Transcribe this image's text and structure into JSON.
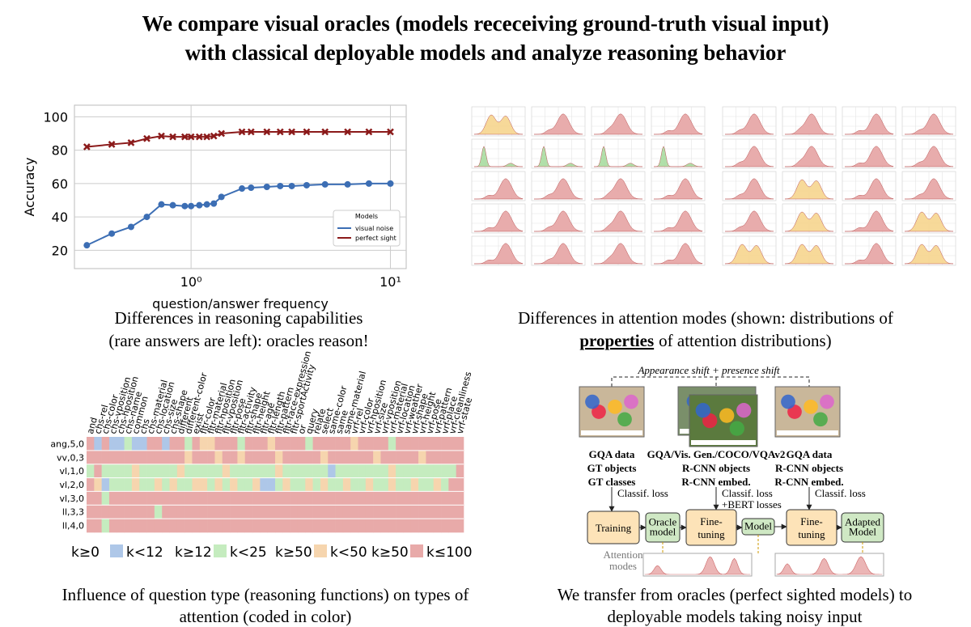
{
  "title": [
    "We compare visual oracles (models receceiving ground-truth visual input)",
    "with classical deployable models and analyze reasoning behavior"
  ],
  "chart_data": {
    "type": "line",
    "xlabel": "question/answer frequency",
    "ylabel": "Accuracy",
    "xscale": "log",
    "x": [
      0.3,
      0.4,
      0.5,
      0.6,
      0.71,
      0.81,
      0.93,
      1.0,
      1.1,
      1.2,
      1.3,
      1.42,
      1.8,
      2.0,
      2.4,
      2.8,
      3.2,
      3.8,
      4.7,
      6.1,
      7.8,
      10
    ],
    "series": [
      {
        "name": "visual noise",
        "color": "#3c6eb4",
        "marker": "circle",
        "values": [
          23,
          30,
          34,
          40,
          47.5,
          47,
          46.5,
          46.5,
          47,
          47.5,
          48,
          52,
          57,
          57.5,
          58,
          58.5,
          58.5,
          59,
          59.5,
          59.5,
          60,
          60
        ]
      },
      {
        "name": "perfect sight",
        "color": "#8b1a1a",
        "marker": "x",
        "values": [
          82,
          83.5,
          84.5,
          87,
          88.5,
          88,
          88,
          88,
          88,
          88,
          88.5,
          90,
          91,
          91,
          91,
          91,
          91,
          91,
          91,
          91,
          91,
          91
        ]
      }
    ],
    "xlim": [
      0.26,
      12
    ],
    "ylim": [
      9,
      107
    ],
    "xticks": [
      {
        "value": 1,
        "label": "10⁰"
      },
      {
        "value": 10,
        "label": "10¹"
      }
    ],
    "yticks": [
      20,
      40,
      60,
      80,
      100
    ],
    "grid": true,
    "legend_title": "Models",
    "legend": "lower right"
  },
  "ridge_grid": {
    "palette": {
      "y": "#f6d58e",
      "g": "#a8dba0",
      "r": "#e6a3a3"
    },
    "rows": [
      [
        "y",
        "r",
        "r",
        "r",
        "r",
        "r",
        "r",
        "r"
      ],
      [
        "g",
        "g",
        "g",
        "g",
        "r",
        "r",
        "r",
        "r"
      ],
      [
        "r",
        "r",
        "r",
        "r",
        "r",
        "y",
        "r",
        "r"
      ],
      [
        "r",
        "r",
        "r",
        "r",
        "r",
        "y",
        "r",
        "y"
      ],
      [
        "r",
        "r",
        "r",
        "r",
        "y",
        "y",
        "r",
        "y"
      ]
    ]
  },
  "heatmap": {
    "columns": [
      "and",
      "chs-rel",
      "chs-color",
      "chs-vposition",
      "chs-hposition",
      "chs-name",
      "common",
      "chs",
      "chs-material",
      "chs-location",
      "chs-size",
      "chs-shape",
      "different",
      "different-color",
      "exist",
      "fltr-color",
      "fltr-material",
      "fltr-hposition",
      "fltr-vposition",
      "fltr-pose",
      "fltr-activity",
      "fltr-shape",
      "fltr-height",
      "fltr-age",
      "fltr-length",
      "fltr-pattern",
      "fltr-face-expression",
      "fltr-sportActivity",
      "or",
      "query",
      "relate",
      "select",
      "same-color",
      "same",
      "same-material",
      "vrf-rel",
      "vrf-color",
      "vrf-hposition",
      "vrf-size",
      "vrf-vposition",
      "vrf-material",
      "vrf-location",
      "vrf-weather",
      "vrf-shape",
      "vrf-height",
      "vrf-pose",
      "vrf-pattern",
      "vrf-place",
      "vrf-cleanliness",
      "vrf-state"
    ],
    "rows": [
      "ang,5,0",
      "vv,0,3",
      "vl,1,0",
      "vl,2,0",
      "vl,3,0",
      "ll,3,3",
      "ll,4,0"
    ],
    "colors": [
      "#aec7e8",
      "#c5ecbf",
      "#f6d5ae",
      "#e8aaa9"
    ],
    "legend": [
      {
        "low": "k≥0",
        "high": "k<12"
      },
      {
        "low": "k≥12",
        "high": "k<25"
      },
      {
        "low": "k≥50",
        "high": "k<50"
      },
      {
        "low": "k≥50",
        "high": "k≤100"
      }
    ],
    "cells": [
      [
        3,
        0,
        3,
        0,
        0,
        1,
        0,
        0,
        3,
        3,
        0,
        3,
        3,
        1,
        3,
        2,
        2,
        3,
        3,
        3,
        1,
        3,
        3,
        3,
        2,
        3,
        3,
        3,
        3,
        1,
        3,
        3,
        3,
        3,
        3,
        2,
        3,
        3,
        3,
        3,
        1,
        3,
        3,
        3,
        3,
        3,
        3,
        3,
        3,
        3
      ],
      [
        3,
        3,
        3,
        3,
        3,
        3,
        3,
        3,
        3,
        3,
        3,
        3,
        3,
        2,
        3,
        3,
        3,
        2,
        3,
        3,
        2,
        3,
        3,
        3,
        3,
        2,
        3,
        3,
        3,
        3,
        3,
        2,
        3,
        3,
        3,
        3,
        3,
        3,
        2,
        3,
        3,
        3,
        3,
        3,
        2,
        3,
        3,
        3,
        3,
        3
      ],
      [
        1,
        3,
        1,
        1,
        1,
        1,
        2,
        1,
        1,
        1,
        1,
        1,
        2,
        1,
        1,
        1,
        1,
        1,
        2,
        1,
        1,
        1,
        1,
        1,
        1,
        2,
        1,
        1,
        1,
        1,
        1,
        1,
        0,
        1,
        1,
        1,
        1,
        1,
        1,
        1,
        2,
        1,
        1,
        1,
        1,
        1,
        1,
        1,
        1,
        3
      ],
      [
        3,
        2,
        0,
        1,
        1,
        1,
        2,
        1,
        1,
        2,
        1,
        2,
        1,
        1,
        2,
        2,
        1,
        2,
        1,
        2,
        1,
        1,
        2,
        0,
        0,
        1,
        2,
        1,
        1,
        2,
        1,
        2,
        1,
        1,
        2,
        1,
        1,
        2,
        1,
        1,
        2,
        1,
        1,
        2,
        1,
        1,
        2,
        1,
        3,
        3
      ],
      [
        3,
        3,
        1,
        3,
        3,
        3,
        3,
        3,
        3,
        3,
        3,
        3,
        3,
        3,
        3,
        3,
        3,
        3,
        3,
        3,
        3,
        3,
        3,
        3,
        3,
        3,
        3,
        3,
        3,
        3,
        3,
        3,
        3,
        3,
        3,
        3,
        3,
        3,
        3,
        3,
        3,
        3,
        3,
        3,
        3,
        3,
        3,
        3,
        3,
        3
      ],
      [
        3,
        3,
        3,
        3,
        3,
        3,
        3,
        3,
        3,
        1,
        3,
        3,
        3,
        3,
        3,
        3,
        3,
        3,
        3,
        3,
        3,
        3,
        3,
        3,
        3,
        3,
        3,
        3,
        3,
        3,
        3,
        3,
        3,
        3,
        3,
        3,
        3,
        3,
        3,
        3,
        3,
        3,
        3,
        3,
        3,
        3,
        3,
        3,
        3,
        3
      ],
      [
        3,
        3,
        1,
        3,
        3,
        3,
        3,
        3,
        3,
        3,
        3,
        3,
        3,
        3,
        3,
        3,
        3,
        3,
        3,
        3,
        3,
        3,
        3,
        3,
        3,
        3,
        3,
        3,
        3,
        3,
        3,
        3,
        3,
        3,
        3,
        3,
        3,
        3,
        3,
        3,
        3,
        3,
        3,
        3,
        3,
        3,
        3,
        3,
        3,
        3
      ]
    ]
  },
  "diagram": {
    "bracket_label": "Appearance shift + presence shift",
    "columns": [
      [
        "GQA data",
        "GT objects",
        "GT classes"
      ],
      [
        "GQA/Vis. Gen./COCO/VQAv2",
        "R-CNN objects",
        "R-CNN embed."
      ],
      [
        "GQA data",
        "R-CNN objects",
        "R-CNN embed."
      ]
    ],
    "losses": [
      [
        "Classif. loss"
      ],
      [
        "Classif. loss",
        "+BERT losses"
      ],
      [
        "Classif. loss"
      ]
    ],
    "boxes": [
      [
        "Training"
      ],
      [
        "Oracle",
        "model"
      ],
      [
        "Fine-",
        "tuning"
      ],
      [
        "Model"
      ],
      [
        "Fine-",
        "tuning"
      ],
      [
        "Adapted",
        "Model"
      ]
    ],
    "attention_label": [
      "Attention",
      "modes"
    ]
  },
  "captions": [
    {
      "line1": "Differences in reasoning capabilities",
      "line2": "(rare answers are left): oracles reason!"
    },
    {
      "line1": "Differences in attention modes (shown: distributions of",
      "emphasis": "properties",
      "line2": "of attention distributions)"
    },
    {
      "line1": "Influence of question type (reasoning functions) on types of",
      "line2": "attention (coded in color)"
    },
    {
      "line1": "We transfer from oracles (perfect sighted models) to",
      "line2": "deployable models taking noisy input"
    }
  ]
}
